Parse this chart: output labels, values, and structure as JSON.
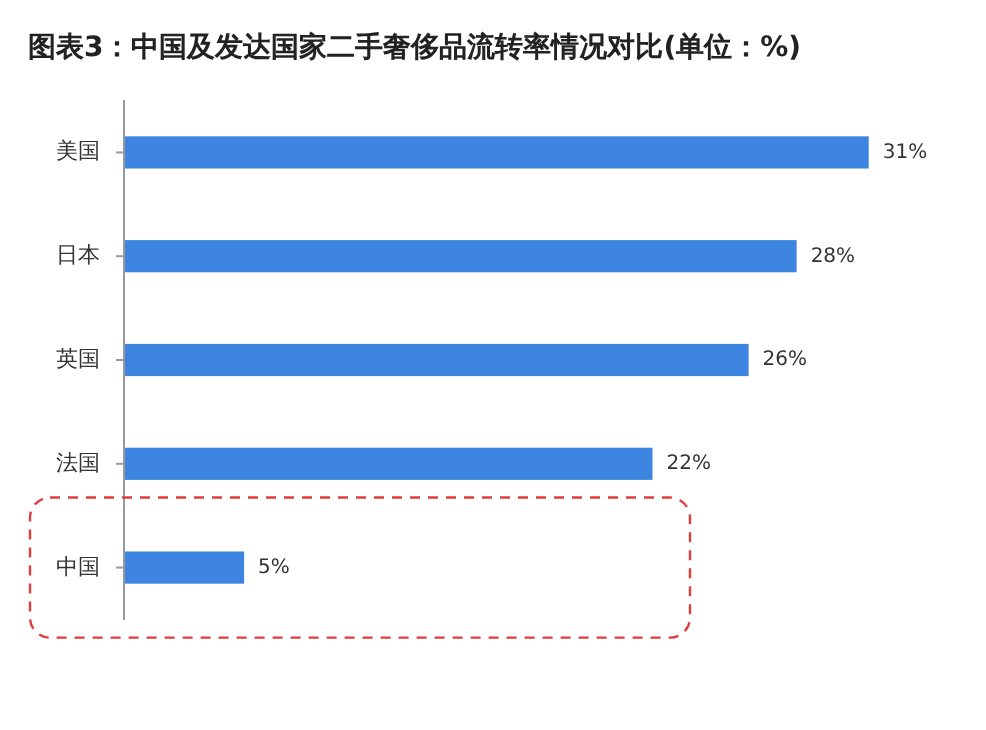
{
  "chart_data": {
    "type": "bar",
    "orientation": "horizontal",
    "title": "图表3：中国及发达国家二手奢侈品流转率情况对比(单位：%)",
    "categories": [
      "美国",
      "日本",
      "英国",
      "法国",
      "中国"
    ],
    "values": [
      31,
      28,
      26,
      22,
      5
    ],
    "value_labels": [
      "31%",
      "28%",
      "26%",
      "22%",
      "5%"
    ],
    "color": "#3d85e0"
  }
}
